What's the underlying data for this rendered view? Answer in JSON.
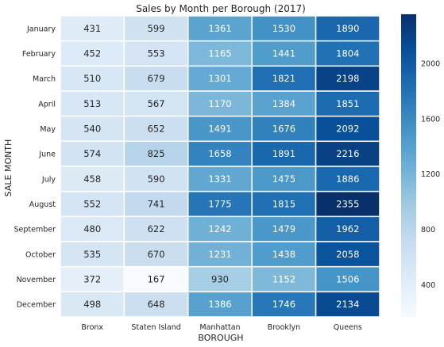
{
  "chart_data": {
    "type": "heatmap",
    "title": "Sales by Month per Borough (2017)",
    "xlabel": "BOROUGH",
    "ylabel": "SALE MONTH",
    "x_categories": [
      "Bronx",
      "Staten Island",
      "Manhattan",
      "Brooklyn",
      "Queens"
    ],
    "y_categories": [
      "January",
      "February",
      "March",
      "April",
      "May",
      "June",
      "July",
      "August",
      "September",
      "October",
      "November",
      "December"
    ],
    "values": [
      [
        431,
        599,
        1361,
        1530,
        1890
      ],
      [
        452,
        553,
        1165,
        1441,
        1804
      ],
      [
        510,
        679,
        1301,
        1821,
        2198
      ],
      [
        513,
        567,
        1170,
        1384,
        1851
      ],
      [
        540,
        652,
        1491,
        1676,
        2092
      ],
      [
        574,
        825,
        1658,
        1891,
        2216
      ],
      [
        458,
        590,
        1331,
        1475,
        1886
      ],
      [
        552,
        741,
        1775,
        1815,
        2355
      ],
      [
        480,
        622,
        1242,
        1479,
        1962
      ],
      [
        535,
        670,
        1231,
        1438,
        2058
      ],
      [
        372,
        167,
        930,
        1152,
        1506
      ],
      [
        498,
        648,
        1386,
        1746,
        2134
      ]
    ],
    "colormap": "Blues",
    "colorbar": {
      "min": 167,
      "max": 2355,
      "ticks": [
        400,
        800,
        1200,
        1600,
        2000
      ]
    },
    "cell_borders": "#ffffff",
    "grid": false
  }
}
